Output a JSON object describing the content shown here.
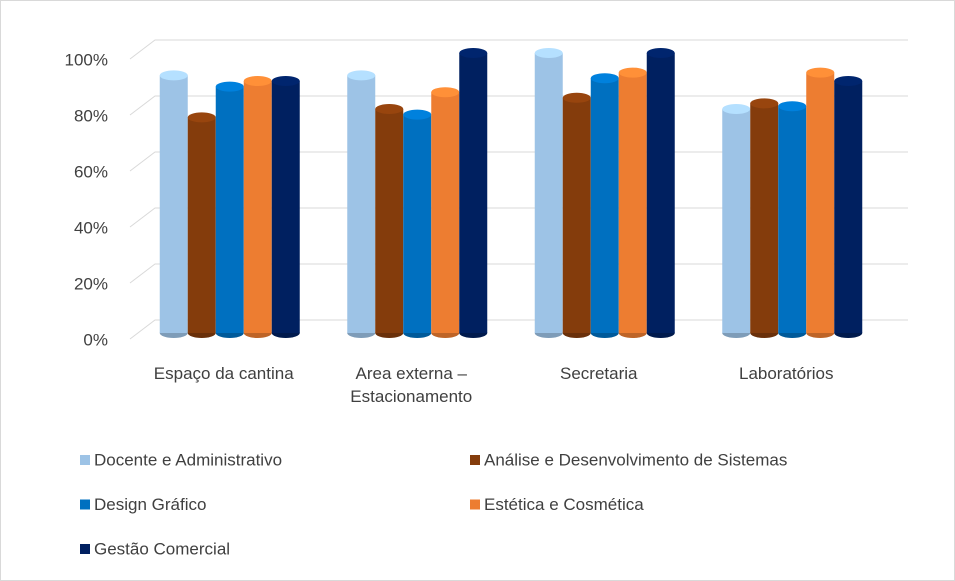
{
  "chart_data": {
    "type": "bar",
    "categories": [
      "Espaço da cantina",
      "Area externa – Estacionamento",
      "Secretaria",
      "Laboratórios"
    ],
    "series": [
      {
        "name": "Docente e Administrativo",
        "color": "#9dc3e6",
        "values": [
          92,
          92,
          100,
          80
        ]
      },
      {
        "name": "Análise e Desenvolvimento de Sistemas",
        "color": "#843c0c",
        "values": [
          77,
          80,
          84,
          82
        ]
      },
      {
        "name": "Design Gráfico",
        "color": "#0070c0",
        "values": [
          88,
          78,
          91,
          81
        ]
      },
      {
        "name": "Estética e Cosmética",
        "color": "#ed7d31",
        "values": [
          90,
          86,
          93,
          93
        ]
      },
      {
        "name": "Gestão Comercial",
        "color": "#002060",
        "values": [
          90,
          100,
          100,
          90
        ]
      }
    ],
    "ylim": [
      0,
      100
    ],
    "yticks": [
      {
        "value": 0,
        "label": "0%"
      },
      {
        "value": 20,
        "label": "20%"
      },
      {
        "value": 40,
        "label": "40%"
      },
      {
        "value": 60,
        "label": "60%"
      },
      {
        "value": 80,
        "label": "80%"
      },
      {
        "value": 100,
        "label": "100%"
      }
    ],
    "grid": true
  }
}
